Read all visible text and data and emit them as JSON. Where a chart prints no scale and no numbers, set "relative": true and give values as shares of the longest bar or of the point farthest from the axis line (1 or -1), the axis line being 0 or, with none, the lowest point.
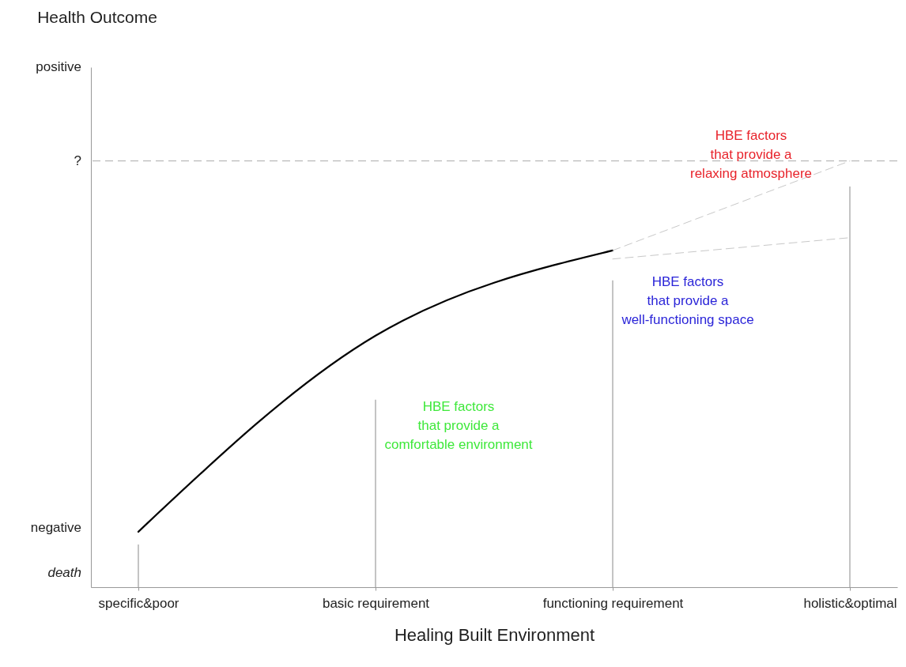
{
  "chart_data": {
    "type": "line",
    "relative": true,
    "xlabel": "Healing Built Environment",
    "categories": [
      "specific&poor",
      "basic requirement",
      "functioning requirement",
      "holistic&optimal"
    ],
    "series": [
      {
        "type": "bar",
        "color": "#b0b0b0",
        "values": [
          0.1,
          0.44,
          0.72,
          0.94
        ]
      },
      {
        "color": "#000000",
        "values": [
          0.13,
          0.59,
          0.79,
          null
        ]
      },
      {
        "color": "#c8c8c8",
        "line_style": "dashed",
        "values": [
          null,
          null,
          0.79,
          1.0
        ]
      },
      {
        "color": "#c8c8c8",
        "line_style": "dashed",
        "values": [
          null,
          null,
          0.77,
          0.82
        ]
      }
    ],
    "ref_lines": [
      {
        "axis": "y",
        "value": 1.0,
        "label": "?",
        "color": "#aaaaaa",
        "line_style": "dashed"
      }
    ],
    "annotations": [
      "Health Outcome",
      "positive",
      "negative",
      "death",
      "HBE factors\nthat provide a\nrelaxing atmosphere",
      "HBE factors\nthat provide a\nwell-functioning space",
      "HBE factors\nthat provide a\ncomfortable environment"
    ]
  }
}
